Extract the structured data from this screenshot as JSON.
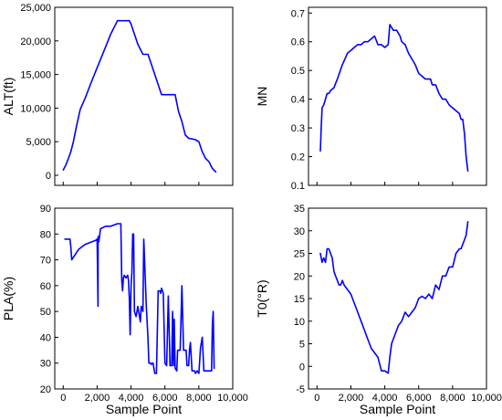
{
  "colors": {
    "series": "#0000ff"
  },
  "chart_data": [
    {
      "id": "alt",
      "type": "line",
      "xlabel": "",
      "ylabel": "ALT(ft)",
      "xlim": [
        -500,
        10000
      ],
      "ylim": [
        -1500,
        25000
      ],
      "xticks": [
        0,
        2000,
        4000,
        6000,
        8000,
        10000
      ],
      "yticks": [
        0,
        5000,
        10000,
        15000,
        20000,
        25000
      ],
      "ytick_labels": [
        "0",
        "5,000",
        "10,000",
        "15,000",
        "20,000",
        "25,000"
      ],
      "xtick_labels": [],
      "series": [
        {
          "x": [
            0,
            150,
            300,
            450,
            600,
            800,
            1000,
            1300,
            1600,
            2000,
            2400,
            2800,
            3200,
            3400,
            3500,
            3700,
            3900,
            4000,
            4200,
            4400,
            4700,
            5000,
            5200,
            5400,
            5600,
            5800,
            6000,
            6200,
            6400,
            6600,
            6800,
            7000,
            7200,
            7400,
            7600,
            7800,
            8000,
            8200,
            8400,
            8600,
            8800,
            9000
          ],
          "y": [
            800,
            1500,
            2500,
            3500,
            5000,
            7500,
            9800,
            11500,
            13500,
            16000,
            18500,
            21000,
            23000,
            23000,
            23000,
            23000,
            23000,
            22500,
            21000,
            19500,
            18000,
            18000,
            16500,
            15000,
            13500,
            12000,
            12000,
            12000,
            12000,
            12000,
            9500,
            8000,
            6000,
            5500,
            5400,
            5300,
            5000,
            3500,
            2500,
            2000,
            1000,
            500
          ]
        }
      ]
    },
    {
      "id": "mn",
      "type": "line",
      "xlabel": "",
      "ylabel": "MN",
      "xlim": [
        -500,
        10000
      ],
      "ylim": [
        0.1,
        0.72
      ],
      "xticks": [
        0,
        2000,
        4000,
        6000,
        8000,
        10000
      ],
      "yticks": [
        0.1,
        0.2,
        0.3,
        0.4,
        0.5,
        0.6,
        0.7
      ],
      "ytick_labels": [
        "0.1",
        "0.2",
        "0.3",
        "0.4",
        "0.5",
        "0.6",
        "0.7"
      ],
      "xtick_labels": [],
      "series": [
        {
          "x": [
            200,
            250,
            300,
            400,
            500,
            600,
            700,
            800,
            1000,
            1200,
            1500,
            1800,
            2000,
            2200,
            2400,
            2600,
            2800,
            3000,
            3200,
            3400,
            3600,
            3800,
            4000,
            4200,
            4300,
            4400,
            4500,
            4700,
            4900,
            5000,
            5200,
            5400,
            5600,
            5800,
            6000,
            6200,
            6400,
            6600,
            6700,
            6800,
            7000,
            7200,
            7400,
            7600,
            7800,
            8000,
            8200,
            8400,
            8500,
            8600,
            8700,
            8800,
            8900
          ],
          "y": [
            0.22,
            0.3,
            0.37,
            0.38,
            0.4,
            0.42,
            0.42,
            0.43,
            0.44,
            0.47,
            0.52,
            0.56,
            0.57,
            0.58,
            0.59,
            0.59,
            0.6,
            0.6,
            0.61,
            0.62,
            0.59,
            0.59,
            0.58,
            0.59,
            0.66,
            0.65,
            0.64,
            0.64,
            0.62,
            0.6,
            0.59,
            0.56,
            0.54,
            0.52,
            0.49,
            0.48,
            0.47,
            0.47,
            0.47,
            0.45,
            0.45,
            0.42,
            0.4,
            0.4,
            0.38,
            0.37,
            0.36,
            0.35,
            0.33,
            0.33,
            0.28,
            0.2,
            0.15
          ]
        }
      ]
    },
    {
      "id": "pla",
      "type": "line",
      "xlabel": "Sample Point",
      "ylabel": "PLA(%)",
      "xlim": [
        -500,
        10000
      ],
      "ylim": [
        20,
        90
      ],
      "xticks": [
        0,
        2000,
        4000,
        6000,
        8000,
        10000
      ],
      "yticks": [
        20,
        30,
        40,
        50,
        60,
        70,
        80,
        90
      ],
      "ytick_labels": [
        "20",
        "30",
        "40",
        "50",
        "60",
        "70",
        "80",
        "90"
      ],
      "xtick_labels": [
        "0",
        "2,000",
        "4,000",
        "6,000",
        "8,000",
        "10,000"
      ],
      "series": [
        {
          "x": [
            100,
            300,
            400,
            450,
            500,
            700,
            900,
            1100,
            1300,
            1500,
            1700,
            1900,
            2000,
            2050,
            2060,
            2100,
            2200,
            2500,
            2800,
            3000,
            3200,
            3400,
            3450,
            3500,
            3550,
            3600,
            3700,
            3800,
            3850,
            3900,
            3950,
            4000,
            4050,
            4100,
            4150,
            4200,
            4300,
            4400,
            4450,
            4500,
            4550,
            4600,
            4700,
            4750,
            4800,
            4900,
            5000,
            5050,
            5100,
            5150,
            5200,
            5250,
            5300,
            5400,
            5500,
            5600,
            5700,
            5750,
            5800,
            5900,
            6000,
            6100,
            6200,
            6300,
            6400,
            6450,
            6500,
            6550,
            6600,
            6700,
            6750,
            6800,
            6900,
            7000,
            7100,
            7200,
            7250,
            7300,
            7350,
            7400,
            7450,
            7500,
            7600,
            7700,
            7750,
            7800,
            7900,
            8000,
            8100,
            8200,
            8300,
            8400,
            8500,
            8600,
            8700,
            8750,
            8800,
            8850,
            8900
          ],
          "y": [
            78,
            78,
            78,
            75,
            70,
            72,
            74,
            75,
            76,
            76.5,
            77,
            77.5,
            78,
            52,
            79,
            77,
            82,
            83,
            83,
            83.5,
            84,
            84,
            62,
            58,
            63,
            64,
            63,
            64,
            62,
            55,
            41,
            60,
            65,
            80,
            80,
            50,
            48,
            52,
            50,
            48,
            46,
            52,
            50,
            78,
            70,
            52,
            40,
            30,
            30,
            30,
            29.5,
            30,
            30,
            26,
            26,
            58,
            58,
            57,
            59,
            57,
            30,
            29,
            56,
            29,
            29,
            50,
            29,
            47,
            28,
            27,
            35,
            35,
            35,
            60,
            35,
            35,
            35,
            29,
            29,
            29,
            35,
            38,
            27,
            27,
            27,
            26,
            27,
            26,
            36,
            40,
            27,
            27,
            27,
            27,
            27,
            27,
            45,
            50,
            28
          ]
        }
      ]
    },
    {
      "id": "t0",
      "type": "line",
      "xlabel": "Sample Point",
      "ylabel": "T0(°R)",
      "xlim": [
        -500,
        10000
      ],
      "ylim": [
        -5,
        35
      ],
      "xticks": [
        0,
        2000,
        4000,
        6000,
        8000,
        10000
      ],
      "yticks": [
        -5,
        0,
        5,
        10,
        15,
        20,
        25,
        30,
        35
      ],
      "ytick_labels": [
        "-5",
        "0",
        "5",
        "10",
        "15",
        "20",
        "25",
        "30",
        "35"
      ],
      "xtick_labels": [
        "0",
        "2,000",
        "4,000",
        "6,000",
        "8,000",
        "10,000"
      ],
      "series": [
        {
          "x": [
            200,
            300,
            400,
            500,
            600,
            700,
            800,
            900,
            1000,
            1100,
            1200,
            1300,
            1400,
            1500,
            1600,
            1800,
            2000,
            2200,
            2400,
            2600,
            2800,
            3000,
            3200,
            3400,
            3600,
            3800,
            4000,
            4200,
            4300,
            4400,
            4600,
            4800,
            5000,
            5200,
            5400,
            5600,
            5800,
            6000,
            6200,
            6400,
            6600,
            6800,
            7000,
            7200,
            7400,
            7600,
            7800,
            8000,
            8200,
            8400,
            8500,
            8600,
            8700,
            8800,
            8900
          ],
          "y": [
            25,
            23,
            24,
            23,
            26,
            26,
            25,
            24,
            21,
            20,
            19,
            18,
            18,
            19,
            18,
            17,
            16,
            14,
            12,
            10,
            8,
            6,
            4,
            3,
            2,
            -1,
            -1,
            -1.5,
            2,
            5,
            7,
            9,
            10,
            12,
            11,
            12,
            13,
            15,
            15.5,
            15,
            16,
            15,
            18,
            17,
            20,
            20,
            22,
            22,
            25,
            26,
            26,
            27,
            28,
            29,
            32
          ]
        }
      ]
    }
  ]
}
